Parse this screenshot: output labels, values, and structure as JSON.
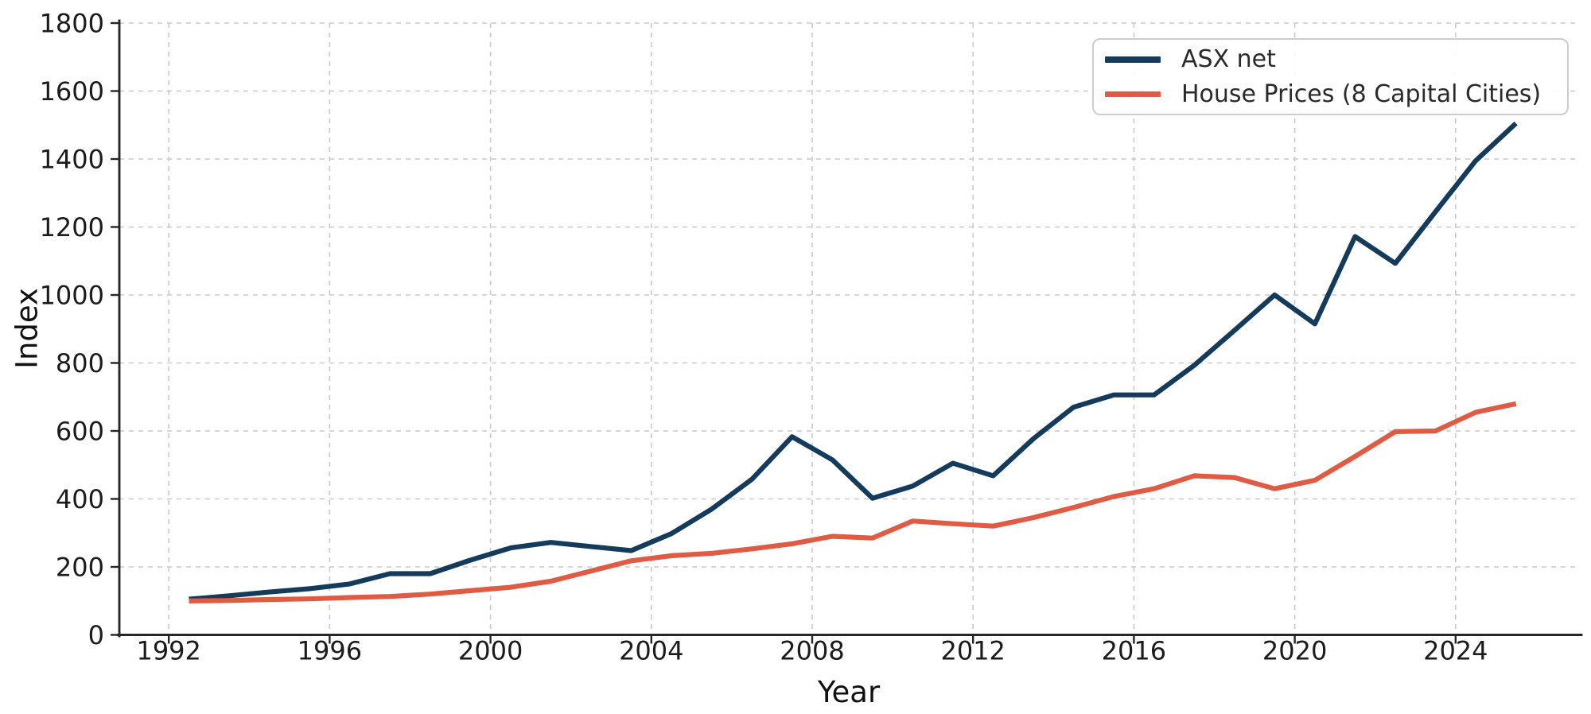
{
  "chart_data": {
    "type": "line",
    "title": "",
    "xlabel": "Year",
    "ylabel": "Index",
    "xlim": [
      1990.77,
      2027.07
    ],
    "ylim": [
      0,
      1800
    ],
    "x_ticks": [
      1992,
      1996,
      2000,
      2004,
      2008,
      2012,
      2016,
      2020,
      2024
    ],
    "y_ticks": [
      0,
      200,
      400,
      600,
      800,
      1000,
      1200,
      1400,
      1600,
      1800
    ],
    "grid": true,
    "legend_position": "upper right",
    "x": [
      1992.5,
      1993.5,
      1994.5,
      1995.5,
      1996.5,
      1997.5,
      1998.5,
      1999.5,
      2000.5,
      2001.5,
      2002.5,
      2003.5,
      2004.5,
      2005.5,
      2006.5,
      2007.5,
      2008.5,
      2009.5,
      2010.5,
      2011.5,
      2012.5,
      2013.5,
      2014.5,
      2015.5,
      2016.5,
      2017.5,
      2018.5,
      2019.5,
      2020.5,
      2021.5,
      2022.5,
      2023.5,
      2024.5,
      2025.5
    ],
    "series": [
      {
        "name": "ASX net",
        "color": "#143a5c",
        "values": [
          105,
          115,
          126,
          136,
          150,
          180,
          180,
          220,
          256,
          272,
          260,
          248,
          298,
          370,
          458,
          583,
          515,
          402,
          438,
          505,
          468,
          577,
          670,
          706,
          706,
          793,
          896,
          1000,
          915,
          1172,
          1093,
          1245,
          1395,
          1505
        ]
      },
      {
        "name": "House Prices (8 Capital Cities)",
        "color": "#df5b43",
        "values": [
          100,
          101,
          104,
          106,
          110,
          113,
          120,
          130,
          140,
          158,
          188,
          218,
          233,
          240,
          253,
          268,
          290,
          285,
          335,
          327,
          320,
          345,
          375,
          407,
          430,
          468,
          463,
          430,
          455,
          525,
          598,
          600,
          655,
          680
        ]
      }
    ]
  }
}
